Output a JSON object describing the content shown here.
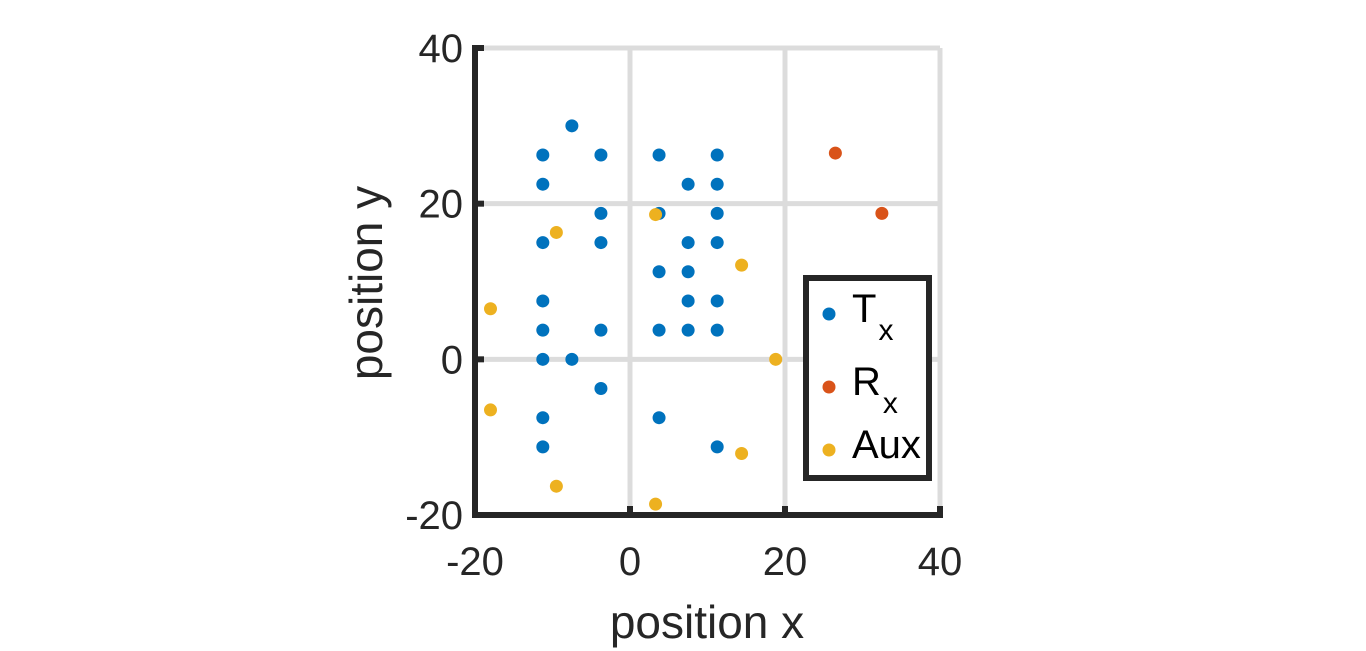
{
  "chart_data": {
    "type": "scatter",
    "xlabel": "position x",
    "ylabel": "position y",
    "xlim": [
      -20,
      40
    ],
    "ylim": [
      -20,
      40
    ],
    "xticks": [
      -20,
      0,
      20,
      40
    ],
    "yticks": [
      -20,
      0,
      20,
      40
    ],
    "grid": true,
    "legend_position": "bottom-right",
    "series": [
      {
        "name": "Tx",
        "label_main": "T",
        "label_sub": "x",
        "color": "#0072BD",
        "points": [
          [
            -7.5,
            30
          ],
          [
            -11.25,
            26.25
          ],
          [
            -3.75,
            26.25
          ],
          [
            3.75,
            26.25
          ],
          [
            11.25,
            26.25
          ],
          [
            -11.25,
            22.5
          ],
          [
            7.5,
            22.5
          ],
          [
            11.25,
            22.5
          ],
          [
            -3.75,
            18.75
          ],
          [
            3.75,
            18.75
          ],
          [
            11.25,
            18.75
          ],
          [
            -11.25,
            15
          ],
          [
            -3.75,
            15
          ],
          [
            7.5,
            15
          ],
          [
            11.25,
            15
          ],
          [
            3.75,
            11.25
          ],
          [
            7.5,
            11.25
          ],
          [
            -11.25,
            7.5
          ],
          [
            7.5,
            7.5
          ],
          [
            11.25,
            7.5
          ],
          [
            -11.25,
            3.75
          ],
          [
            -3.75,
            3.75
          ],
          [
            3.75,
            3.75
          ],
          [
            7.5,
            3.75
          ],
          [
            11.25,
            3.75
          ],
          [
            -11.25,
            0
          ],
          [
            -7.5,
            0
          ],
          [
            -3.75,
            -3.75
          ],
          [
            -11.25,
            -7.5
          ],
          [
            3.75,
            -7.5
          ],
          [
            -11.25,
            -11.25
          ],
          [
            11.25,
            -11.25
          ]
        ]
      },
      {
        "name": "Rx",
        "label_main": "R",
        "label_sub": "x",
        "color": "#D95319",
        "points": [
          [
            26.5,
            26.5
          ],
          [
            32.5,
            18.75
          ]
        ]
      },
      {
        "name": "Aux",
        "label_main": "Aux",
        "label_sub": "",
        "color": "#EDB120",
        "points": [
          [
            -18,
            6.5
          ],
          [
            -18,
            -6.5
          ],
          [
            -9.5,
            16.3
          ],
          [
            -9.5,
            -16.3
          ],
          [
            3.3,
            18.6
          ],
          [
            3.3,
            -18.6
          ],
          [
            14.4,
            12.1
          ],
          [
            14.4,
            -12.1
          ],
          [
            18.8,
            0
          ]
        ]
      }
    ]
  }
}
